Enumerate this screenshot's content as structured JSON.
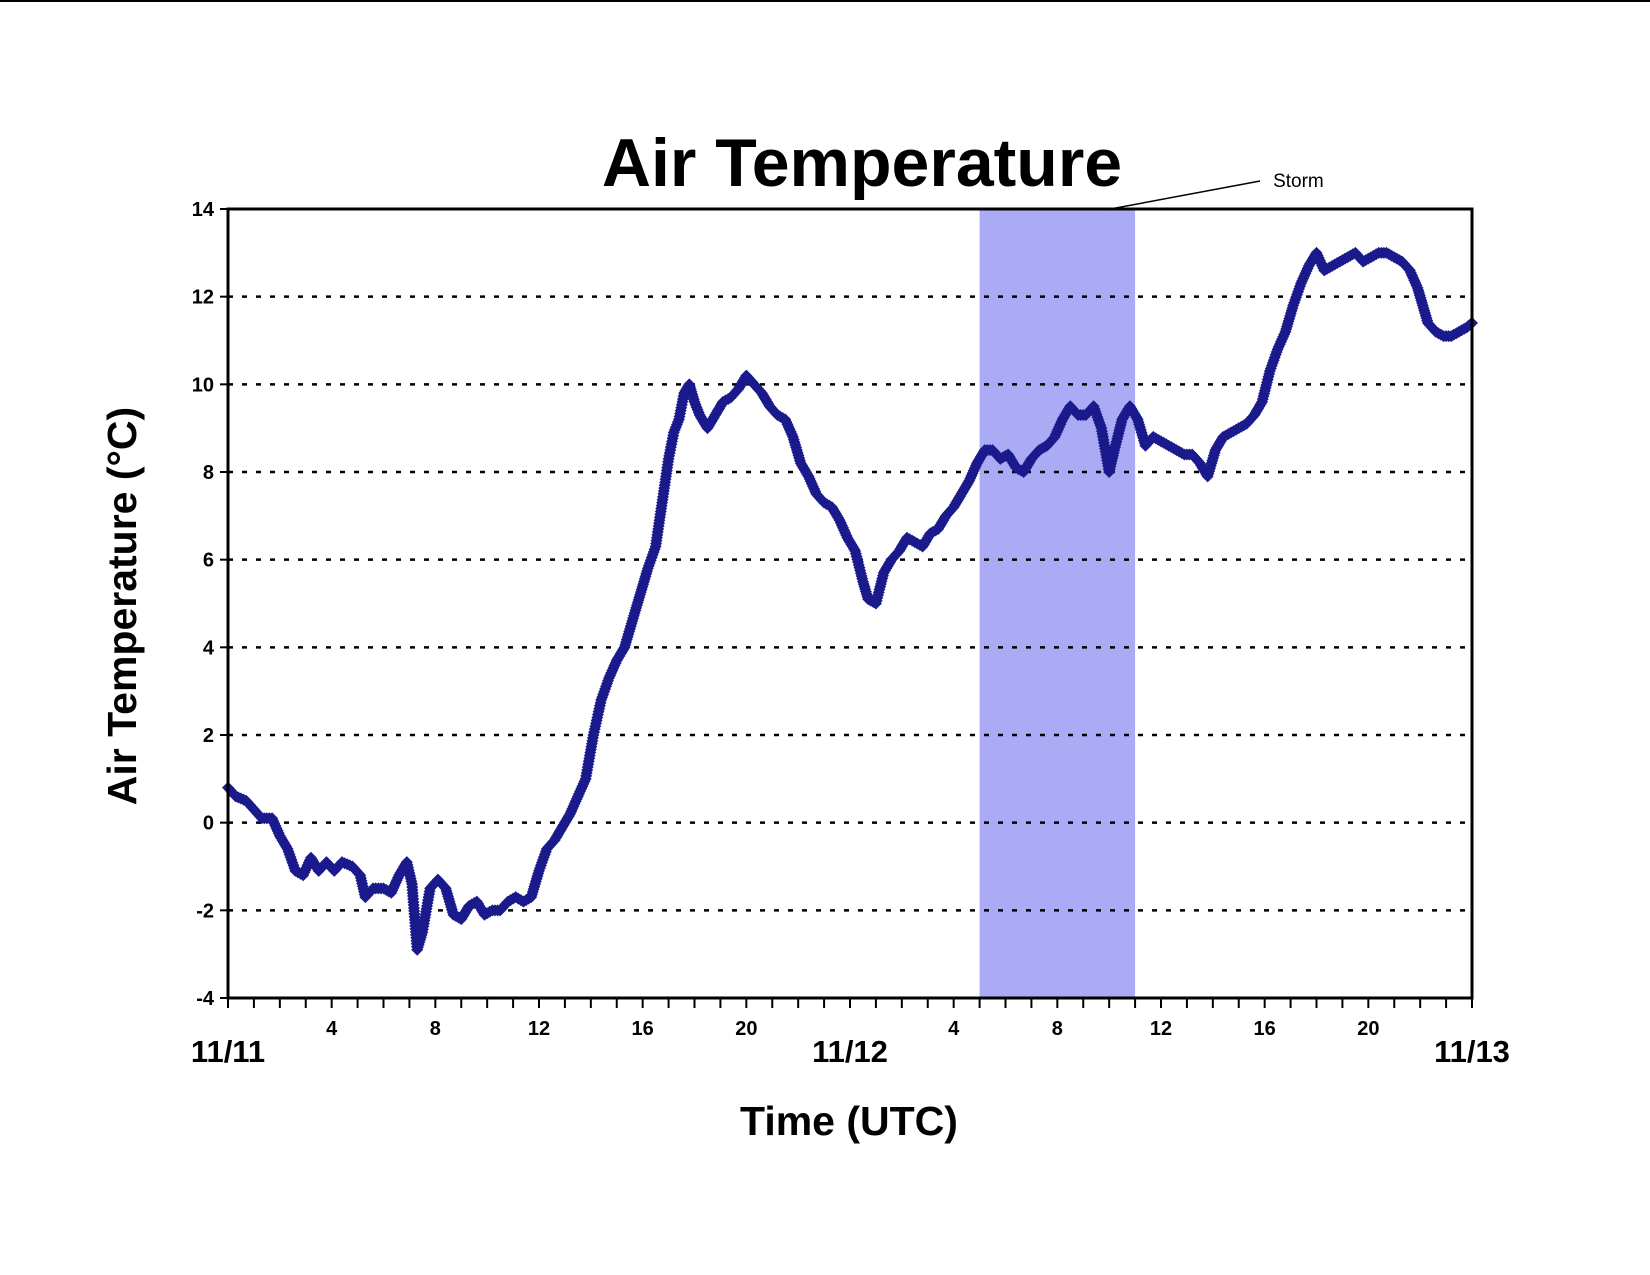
{
  "chart_data": {
    "type": "scatter",
    "title": "Air Temperature",
    "xlabel": "Time (UTC)",
    "ylabel": "Air Temperature (°C)",
    "xlim": [
      0,
      48
    ],
    "ylim": [
      -4,
      14
    ],
    "y_ticks": [
      -4,
      -2,
      0,
      2,
      4,
      6,
      8,
      10,
      12,
      14
    ],
    "hour_ticks": [
      {
        "hour": 4,
        "label": "4"
      },
      {
        "hour": 8,
        "label": "8"
      },
      {
        "hour": 12,
        "label": "12"
      },
      {
        "hour": 16,
        "label": "16"
      },
      {
        "hour": 20,
        "label": "20"
      },
      {
        "hour": 28,
        "label": "4"
      },
      {
        "hour": 32,
        "label": "8"
      },
      {
        "hour": 36,
        "label": "12"
      },
      {
        "hour": 40,
        "label": "16"
      },
      {
        "hour": 44,
        "label": "20"
      }
    ],
    "date_ticks": [
      {
        "hour": 0,
        "label": "11/11"
      },
      {
        "hour": 24,
        "label": "11/12"
      },
      {
        "hour": 48,
        "label": "11/13"
      }
    ],
    "grid": "horizontal dotted",
    "marker_color": "#1a1a8c",
    "shaded_region": {
      "x_start": 29,
      "x_end": 35,
      "color": "#aaaaf5",
      "label": "Storm"
    },
    "series": [
      {
        "points": [
          [
            0.0,
            0.8
          ],
          [
            0.3,
            0.6
          ],
          [
            0.7,
            0.5
          ],
          [
            1.0,
            0.3
          ],
          [
            1.3,
            0.1
          ],
          [
            1.7,
            0.1
          ],
          [
            2.0,
            -0.3
          ],
          [
            2.3,
            -0.6
          ],
          [
            2.6,
            -1.1
          ],
          [
            2.9,
            -1.2
          ],
          [
            3.2,
            -0.8
          ],
          [
            3.5,
            -1.1
          ],
          [
            3.8,
            -0.9
          ],
          [
            4.1,
            -1.1
          ],
          [
            4.4,
            -0.9
          ],
          [
            4.8,
            -1.0
          ],
          [
            5.1,
            -1.2
          ],
          [
            5.3,
            -1.7
          ],
          [
            5.6,
            -1.5
          ],
          [
            6.0,
            -1.5
          ],
          [
            6.3,
            -1.6
          ],
          [
            6.6,
            -1.2
          ],
          [
            6.9,
            -0.9
          ],
          [
            7.1,
            -1.4
          ],
          [
            7.3,
            -2.9
          ],
          [
            7.5,
            -2.5
          ],
          [
            7.8,
            -1.5
          ],
          [
            8.1,
            -1.3
          ],
          [
            8.4,
            -1.5
          ],
          [
            8.7,
            -2.1
          ],
          [
            9.0,
            -2.2
          ],
          [
            9.3,
            -1.9
          ],
          [
            9.6,
            -1.8
          ],
          [
            9.9,
            -2.1
          ],
          [
            10.2,
            -2.0
          ],
          [
            10.5,
            -2.0
          ],
          [
            10.8,
            -1.8
          ],
          [
            11.1,
            -1.7
          ],
          [
            11.4,
            -1.8
          ],
          [
            11.7,
            -1.7
          ],
          [
            12.0,
            -1.1
          ],
          [
            12.3,
            -0.6
          ],
          [
            12.6,
            -0.4
          ],
          [
            12.9,
            -0.1
          ],
          [
            13.2,
            0.2
          ],
          [
            13.5,
            0.6
          ],
          [
            13.8,
            1.0
          ],
          [
            14.1,
            2.0
          ],
          [
            14.4,
            2.8
          ],
          [
            14.7,
            3.3
          ],
          [
            15.0,
            3.7
          ],
          [
            15.3,
            4.0
          ],
          [
            15.6,
            4.6
          ],
          [
            15.9,
            5.2
          ],
          [
            16.2,
            5.8
          ],
          [
            16.5,
            6.3
          ],
          [
            16.8,
            7.5
          ],
          [
            17.0,
            8.3
          ],
          [
            17.2,
            8.9
          ],
          [
            17.4,
            9.2
          ],
          [
            17.6,
            9.8
          ],
          [
            17.8,
            10.0
          ],
          [
            18.0,
            9.6
          ],
          [
            18.2,
            9.3
          ],
          [
            18.5,
            9.0
          ],
          [
            18.8,
            9.3
          ],
          [
            19.1,
            9.6
          ],
          [
            19.4,
            9.7
          ],
          [
            19.7,
            9.9
          ],
          [
            20.0,
            10.2
          ],
          [
            20.3,
            10.0
          ],
          [
            20.6,
            9.8
          ],
          [
            20.9,
            9.5
          ],
          [
            21.2,
            9.3
          ],
          [
            21.5,
            9.2
          ],
          [
            21.8,
            8.8
          ],
          [
            22.1,
            8.2
          ],
          [
            22.4,
            7.9
          ],
          [
            22.7,
            7.5
          ],
          [
            23.0,
            7.3
          ],
          [
            23.3,
            7.2
          ],
          [
            23.6,
            6.9
          ],
          [
            23.9,
            6.5
          ],
          [
            24.2,
            6.2
          ],
          [
            24.5,
            5.5
          ],
          [
            24.7,
            5.1
          ],
          [
            25.0,
            5.0
          ],
          [
            25.3,
            5.7
          ],
          [
            25.6,
            6.0
          ],
          [
            25.9,
            6.2
          ],
          [
            26.2,
            6.5
          ],
          [
            26.5,
            6.4
          ],
          [
            26.8,
            6.3
          ],
          [
            27.1,
            6.6
          ],
          [
            27.4,
            6.7
          ],
          [
            27.7,
            7.0
          ],
          [
            28.0,
            7.2
          ],
          [
            28.3,
            7.5
          ],
          [
            28.6,
            7.8
          ],
          [
            28.9,
            8.2
          ],
          [
            29.2,
            8.5
          ],
          [
            29.5,
            8.5
          ],
          [
            29.8,
            8.3
          ],
          [
            30.1,
            8.4
          ],
          [
            30.4,
            8.1
          ],
          [
            30.7,
            8.0
          ],
          [
            31.0,
            8.3
          ],
          [
            31.3,
            8.5
          ],
          [
            31.6,
            8.6
          ],
          [
            31.9,
            8.8
          ],
          [
            32.2,
            9.2
          ],
          [
            32.5,
            9.5
          ],
          [
            32.8,
            9.3
          ],
          [
            33.1,
            9.3
          ],
          [
            33.4,
            9.5
          ],
          [
            33.7,
            9.0
          ],
          [
            34.0,
            8.0
          ],
          [
            34.2,
            8.5
          ],
          [
            34.5,
            9.2
          ],
          [
            34.8,
            9.5
          ],
          [
            35.1,
            9.2
          ],
          [
            35.4,
            8.6
          ],
          [
            35.7,
            8.8
          ],
          [
            36.0,
            8.7
          ],
          [
            36.3,
            8.6
          ],
          [
            36.6,
            8.5
          ],
          [
            36.9,
            8.4
          ],
          [
            37.2,
            8.4
          ],
          [
            37.5,
            8.2
          ],
          [
            37.8,
            7.9
          ],
          [
            38.1,
            8.5
          ],
          [
            38.4,
            8.8
          ],
          [
            38.7,
            8.9
          ],
          [
            39.0,
            9.0
          ],
          [
            39.3,
            9.1
          ],
          [
            39.6,
            9.3
          ],
          [
            39.9,
            9.6
          ],
          [
            40.2,
            10.3
          ],
          [
            40.5,
            10.8
          ],
          [
            40.8,
            11.2
          ],
          [
            41.1,
            11.8
          ],
          [
            41.4,
            12.3
          ],
          [
            41.7,
            12.7
          ],
          [
            42.0,
            13.0
          ],
          [
            42.3,
            12.6
          ],
          [
            42.6,
            12.7
          ],
          [
            42.9,
            12.8
          ],
          [
            43.2,
            12.9
          ],
          [
            43.5,
            13.0
          ],
          [
            43.8,
            12.8
          ],
          [
            44.1,
            12.9
          ],
          [
            44.4,
            13.0
          ],
          [
            44.7,
            13.0
          ],
          [
            45.0,
            12.9
          ],
          [
            45.3,
            12.8
          ],
          [
            45.6,
            12.6
          ],
          [
            45.9,
            12.2
          ],
          [
            46.1,
            11.8
          ],
          [
            46.3,
            11.4
          ],
          [
            46.6,
            11.2
          ],
          [
            46.9,
            11.1
          ],
          [
            47.2,
            11.1
          ],
          [
            47.5,
            11.2
          ],
          [
            47.8,
            11.3
          ],
          [
            48.0,
            11.4
          ]
        ]
      }
    ]
  }
}
